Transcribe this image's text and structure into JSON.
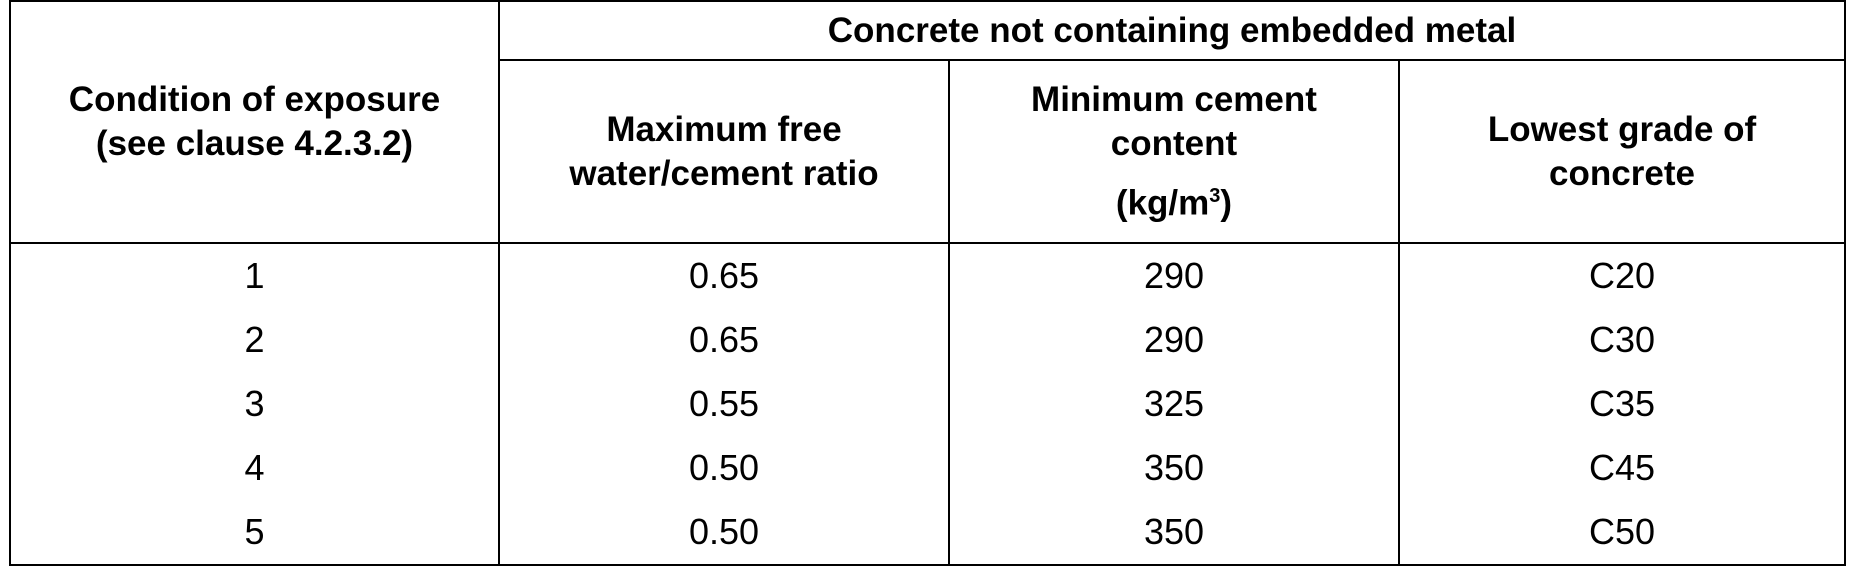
{
  "table": {
    "header": {
      "exposure": [
        "Condition of exposure",
        "(see clause 4.2.3.2)"
      ],
      "group": "Concrete not containing embedded metal",
      "ratio": [
        "Maximum free",
        "water/cement ratio"
      ],
      "cement": {
        "lines": [
          "Minimum cement",
          "content"
        ],
        "unit": "(kg/m",
        "sup": "3",
        "close": ")"
      },
      "grade": [
        "Lowest grade of",
        "concrete"
      ]
    },
    "rows": [
      [
        "1",
        "0.65",
        "290",
        "C20"
      ],
      [
        "2",
        "0.65",
        "290",
        "C30"
      ],
      [
        "3",
        "0.55",
        "325",
        "C35"
      ],
      [
        "4",
        "0.50",
        "350",
        "C45"
      ],
      [
        "5",
        "0.50",
        "350",
        "C50"
      ]
    ]
  }
}
